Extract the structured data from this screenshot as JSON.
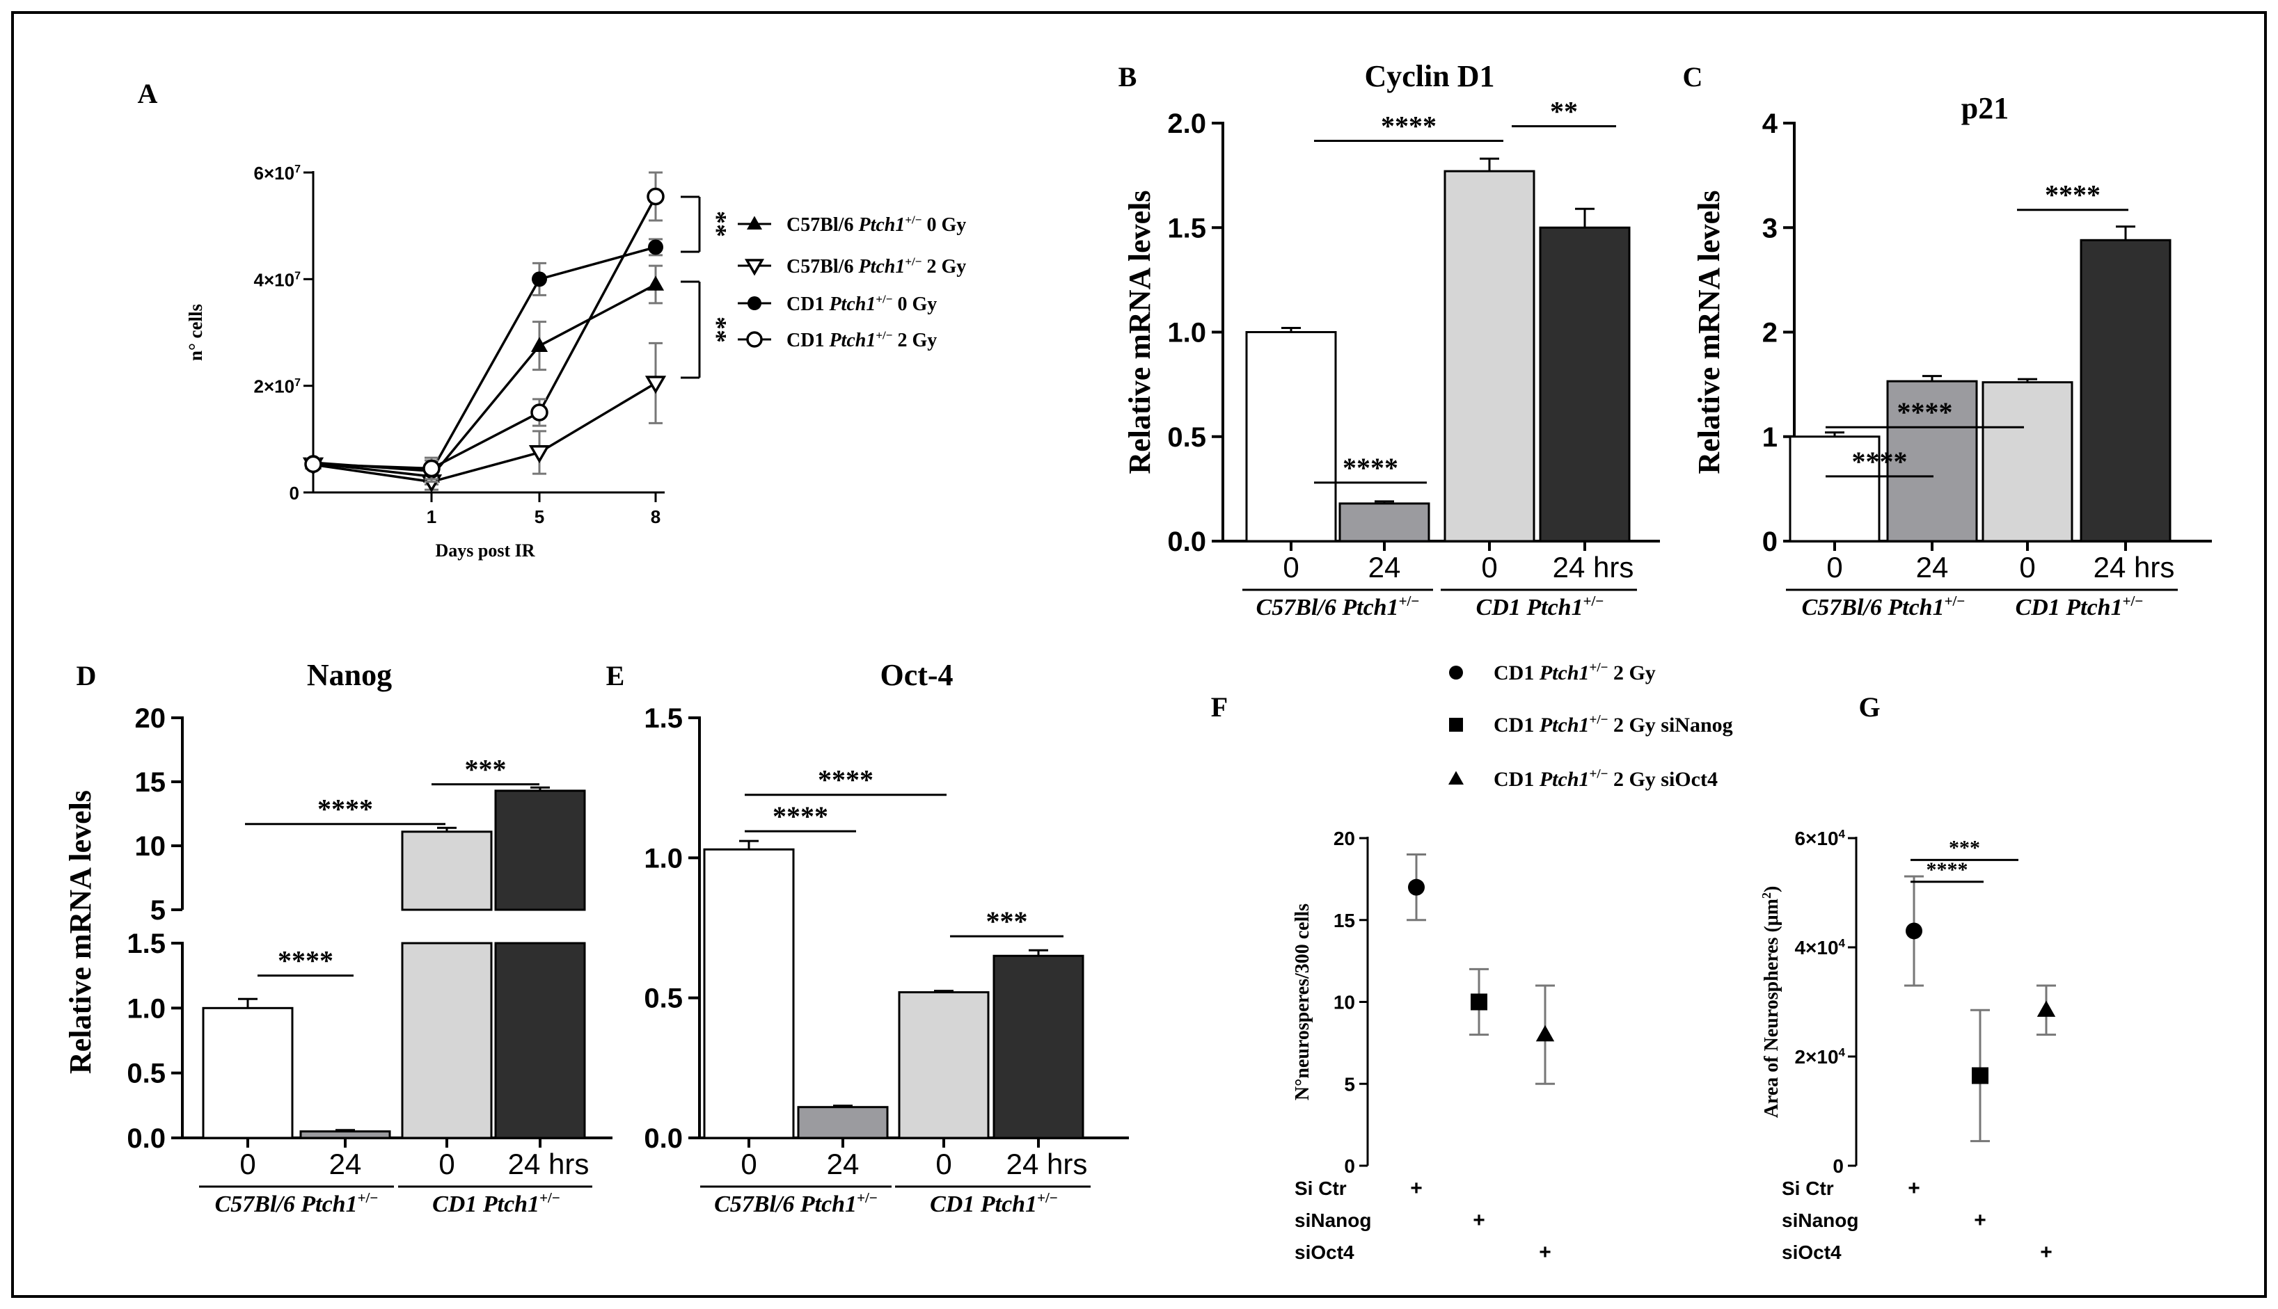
{
  "colors": {
    "white": "#ffffff",
    "grey": "#9b9b9f",
    "light": "#d6d6d6",
    "dark": "#2f2f2f",
    "line": "#000000",
    "errbar": "#777777"
  },
  "chart_data": [
    {
      "panel": "A",
      "type": "line",
      "xlabel": "Days post IR",
      "ylabel": "n° cells",
      "x": [
        0,
        1,
        5,
        8
      ],
      "x_tick_labels": [
        "1",
        "5",
        "8"
      ],
      "y_ticks": [
        0,
        20000000,
        40000000,
        60000000
      ],
      "y_tick_labels": [
        "0",
        "2×10",
        "4×10",
        "6×10"
      ],
      "y_tick_exp": "7",
      "ylim": [
        0,
        60000000
      ],
      "series": [
        {
          "name": "C57Bl/6 Ptch1+/− 0 Gy",
          "marker": "triangle",
          "values": [
            5500000,
            3000000,
            27500000,
            39000000
          ],
          "err": [
            800000,
            1500000,
            4500000,
            3500000
          ]
        },
        {
          "name": "C57Bl/6 Ptch1+/− 2 Gy",
          "marker": "triangle-open-down",
          "values": [
            5200000,
            2000000,
            7500000,
            20500000
          ],
          "err": [
            800000,
            1500000,
            4000000,
            7500000
          ]
        },
        {
          "name": "CD1 Ptch1+/− 0 Gy",
          "marker": "circle",
          "values": [
            5600000,
            4000000,
            40000000,
            46000000
          ],
          "err": [
            800000,
            2000000,
            3000000,
            1500000
          ]
        },
        {
          "name": "CD1 Ptch1+/− 2 Gy",
          "marker": "circle-open",
          "values": [
            5300000,
            4500000,
            15000000,
            55500000
          ],
          "err": [
            800000,
            2000000,
            2500000,
            4500000
          ]
        }
      ],
      "annotations": [
        "**",
        "**"
      ]
    },
    {
      "panel": "B",
      "type": "bar",
      "title": "Cyclin D1",
      "ylabel": "Relative mRNA levels",
      "categories": [
        "0",
        "24",
        "0",
        "24 hrs"
      ],
      "groups": [
        "C57Bl/6 Ptch1+/−",
        "CD1 Ptch1+/−"
      ],
      "values": [
        1.0,
        0.18,
        1.77,
        1.5
      ],
      "err": [
        0.02,
        0.01,
        0.06,
        0.09
      ],
      "ylim": [
        0,
        2.0
      ],
      "y_tick_labels": [
        "0.0",
        "0.5",
        "1.0",
        "1.5",
        "2.0"
      ],
      "annotations": [
        "****",
        "****",
        "**"
      ]
    },
    {
      "panel": "C",
      "type": "bar",
      "title": "p21",
      "ylabel": "Relative mRNA levels",
      "categories": [
        "0",
        "24",
        "0",
        "24 hrs"
      ],
      "groups": [
        "C57Bl/6 Ptch1+/−",
        "CD1 Ptch1+/−"
      ],
      "values": [
        1.0,
        1.53,
        1.52,
        2.88
      ],
      "err": [
        0.04,
        0.05,
        0.03,
        0.13
      ],
      "ylim": [
        0,
        4
      ],
      "y_tick_labels": [
        "0",
        "1",
        "2",
        "3",
        "4"
      ],
      "annotations": [
        "****",
        "****",
        "****"
      ]
    },
    {
      "panel": "D",
      "type": "bar",
      "title": "Nanog",
      "ylabel": "Relative mRNA levels",
      "categories": [
        "0",
        "24",
        "0",
        "24 hrs"
      ],
      "groups": [
        "C57Bl/6 Ptch1+/−",
        "CD1 Ptch1+/−"
      ],
      "values": [
        1.0,
        0.05,
        11.1,
        14.3
      ],
      "err": [
        0.07,
        0.01,
        0.3,
        0.25
      ],
      "axis_break": [
        1.5,
        5
      ],
      "y_tick_labels_lower": [
        "0.0",
        "0.5",
        "1.0",
        "1.5"
      ],
      "y_tick_labels_upper": [
        "5",
        "10",
        "15",
        "20"
      ],
      "annotations": [
        "****",
        "****",
        "***"
      ]
    },
    {
      "panel": "E",
      "type": "bar",
      "title": "Oct-4",
      "categories": [
        "0",
        "24",
        "0",
        "24 hrs"
      ],
      "groups": [
        "C57Bl/6 Ptch1+/−",
        "CD1 Ptch1+/−"
      ],
      "values": [
        1.03,
        0.11,
        0.52,
        0.65
      ],
      "err": [
        0.03,
        0.005,
        0.005,
        0.02
      ],
      "ylim": [
        0,
        1.5
      ],
      "y_tick_labels": [
        "0.0",
        "0.5",
        "1.0",
        "1.5"
      ],
      "annotations": [
        "****",
        "****",
        "***"
      ]
    },
    {
      "panel": "F",
      "type": "scatter",
      "ylabel": "N°neurosperes/300 cells",
      "values": [
        17,
        10,
        8
      ],
      "err": [
        2,
        2,
        3
      ],
      "ylim": [
        0,
        20
      ],
      "y_tick_labels": [
        "0",
        "5",
        "10",
        "15",
        "20"
      ],
      "markers": [
        "circle",
        "square",
        "triangle"
      ]
    },
    {
      "panel": "G",
      "type": "scatter",
      "ylabel": "Area of Neurospheres (μm",
      "ylabel_sup": "2",
      "values": [
        43000,
        16500,
        28500
      ],
      "err": [
        10000,
        12000,
        4500
      ],
      "ylim": [
        0,
        60000
      ],
      "y_tick_labels": [
        "0",
        "2×10",
        "4×10",
        "6×10"
      ],
      "y_tick_exp": "4",
      "markers": [
        "circle",
        "square",
        "triangle"
      ],
      "annotations": [
        "****",
        "***"
      ]
    }
  ],
  "panel_letters": [
    "A",
    "B",
    "C",
    "D",
    "E",
    "F",
    "G"
  ],
  "legend_A": [
    {
      "label": "C57Bl/6 ",
      "italic": "Ptch1",
      "sup": "+/−",
      "dose": "0 Gy"
    },
    {
      "label": "C57Bl/6 ",
      "italic": "Ptch1",
      "sup": "+/−",
      "dose": "2 Gy"
    },
    {
      "label": "CD1 ",
      "italic": "Ptch1",
      "sup": "+/−",
      "dose": "0 Gy"
    },
    {
      "label": "CD1 ",
      "italic": "Ptch1",
      "sup": "+/−",
      "dose": "2 Gy"
    }
  ],
  "legend_FG": [
    {
      "label": "CD1 ",
      "italic": "Ptch1",
      "sup": "+/−",
      "dose": " 2 Gy"
    },
    {
      "label": "CD1 ",
      "italic": "Ptch1",
      "sup": "+/−",
      "dose": " 2 Gy siNanog"
    },
    {
      "label": "CD1 ",
      "italic": "Ptch1",
      "sup": "+/−",
      "dose": " 2 Gy siOct4"
    }
  ],
  "group_labels": {
    "g1_a": "C57Bl/6 ",
    "g1_b": "Ptch1",
    "sup": "+/−",
    "g2_a": "CD1 ",
    "g2_b": "Ptch1"
  },
  "treatment_rows": {
    "labels": [
      "Si Ctr",
      "siNanog",
      "siOct4"
    ],
    "mark": "+"
  }
}
